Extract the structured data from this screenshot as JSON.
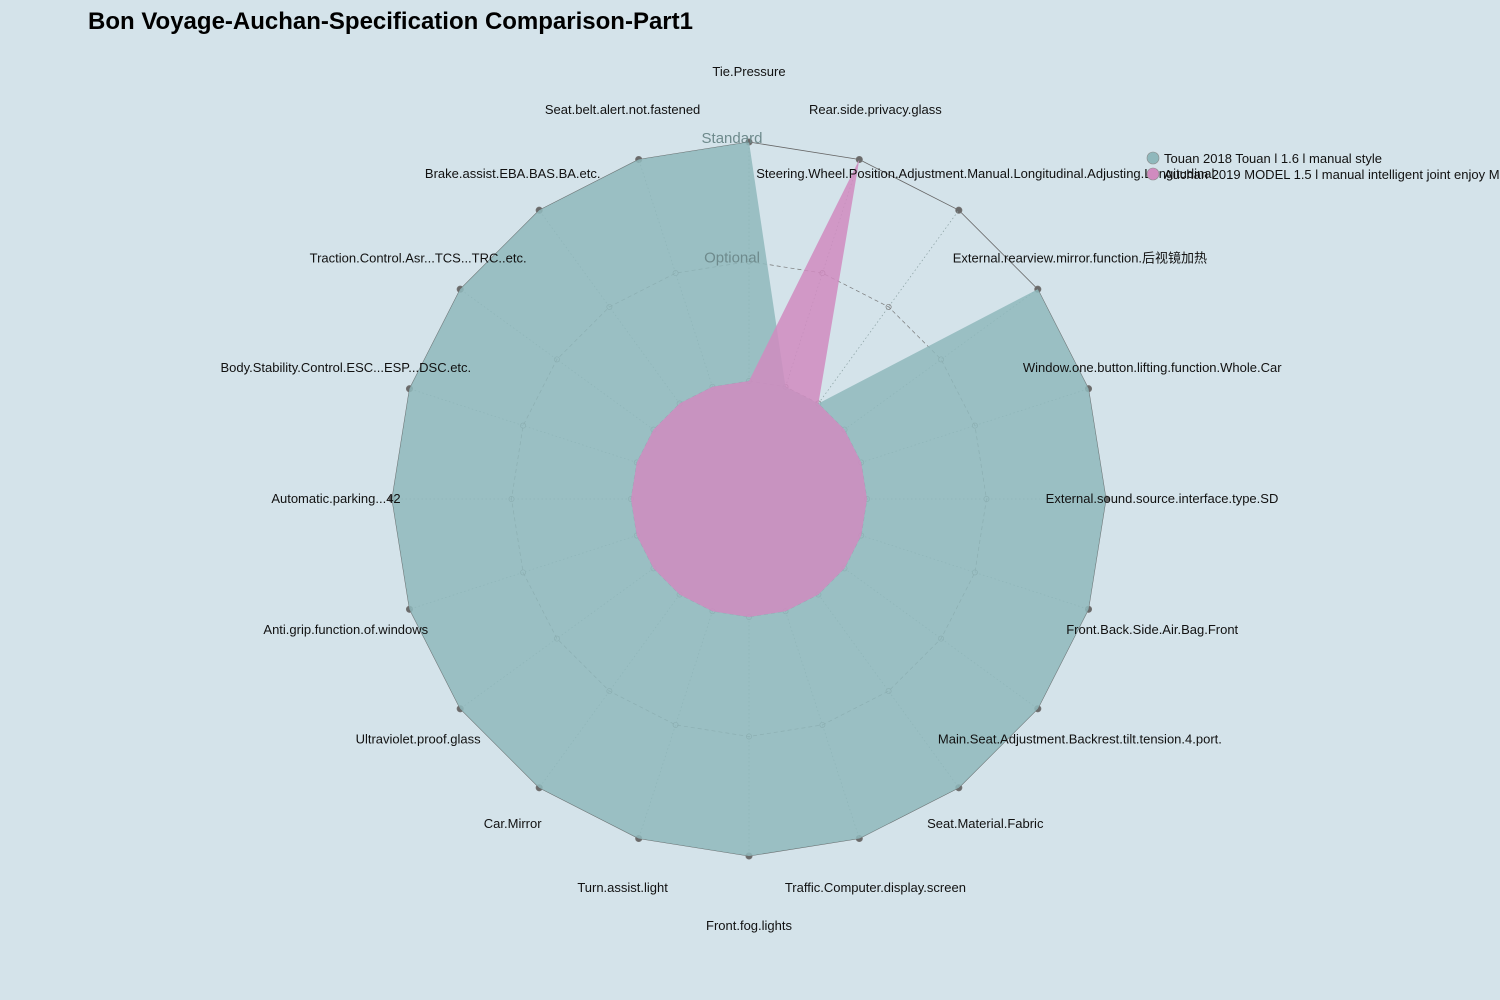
{
  "chart_data": {
    "type": "radar",
    "title": "Bon Voyage-Auchan-Specification Comparison-Part1",
    "levels": [
      "",
      "Optional",
      "Standard"
    ],
    "ylim": [
      0,
      2
    ],
    "axes": [
      "Tie.Pressure",
      "Rear.side.privacy.glass",
      "Steering.Wheel.Position.Adjustment.Manual.Longitudinal.Adjusting.Longitudinal",
      "External.rearview.mirror.function.后视镜加热",
      "Window.one.button.lifting.function.Whole.Car",
      "External.sound.source.interface.type.SD",
      "Front.Back.Side.Air.Bag.Front",
      "Main.Seat.Adjustment.Backrest.tilt.tension.4.port.",
      "Seat.Material.Fabric",
      "Traffic.Computer.display.screen",
      "Front.fog.lights",
      "Turn.assist.light",
      "Car.Mirror",
      "Ultraviolet.proof.glass",
      "Anti.grip.function.of.windows",
      "Automatic.parking...42",
      "Body.Stability.Control.ESC...ESP...DSC.etc.",
      "Traction.Control.Asr...TCS...TRC..etc.",
      "Brake.assist.EBA.BAS.BA.etc.",
      "Seat.belt.alert.not.fastened"
    ],
    "series": [
      {
        "name": "Touan 2018 Touan l 1.6 l manual style",
        "color": "#8fb8bc",
        "values": [
          2,
          0,
          0,
          2,
          2,
          2,
          2,
          2,
          2,
          2,
          2,
          2,
          2,
          2,
          2,
          2,
          2,
          2,
          2,
          2
        ]
      },
      {
        "name": "Auchan 2019 MODEL 1.5 l manual intelligent joint enjoy M",
        "color": "#d08bbf",
        "values": [
          0,
          2,
          0,
          0,
          0,
          0,
          0,
          0,
          0,
          0,
          0,
          0,
          0,
          0,
          0,
          0,
          0,
          0,
          0,
          0
        ]
      }
    ],
    "legend_position": "top-right",
    "grid": true
  }
}
